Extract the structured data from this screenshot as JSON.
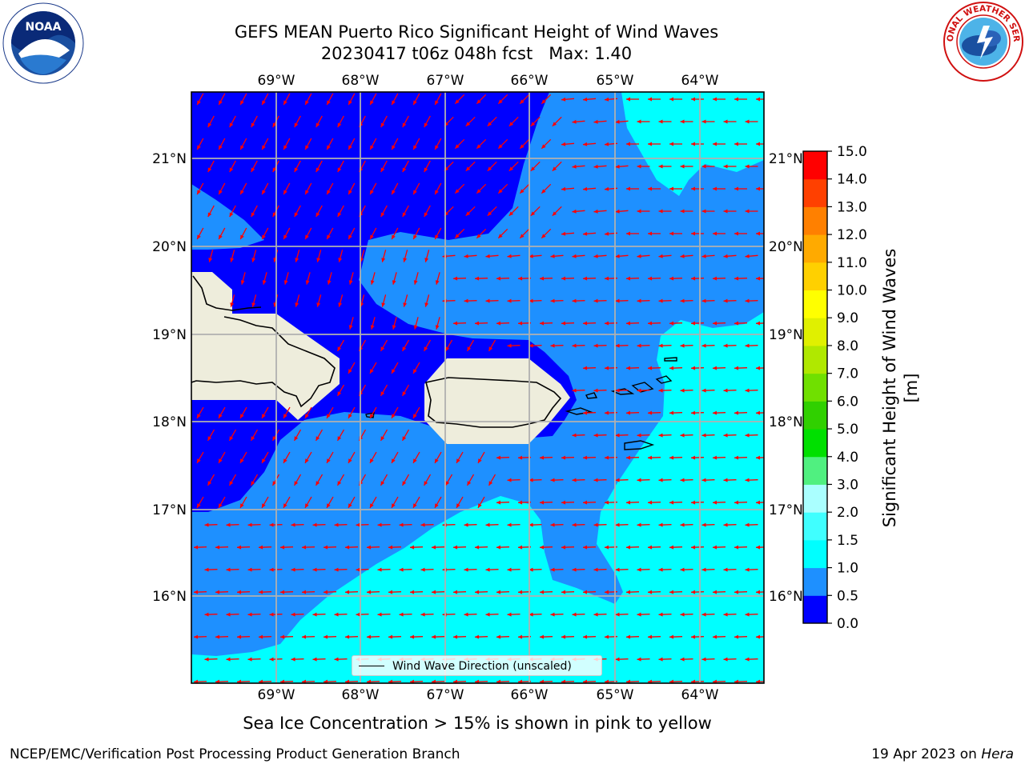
{
  "header": {
    "title_line1": "GEFS MEAN Puerto Rico Significant Height of Wind Waves",
    "title_line2": "20230417 t06z 048h fcst   Max: 1.40"
  },
  "logos": {
    "left": {
      "icon": "noaa-logo-icon",
      "text": "NOAA"
    },
    "right": {
      "icon": "nws-logo-icon",
      "text": "NATIONAL WEATHER SERVICE"
    }
  },
  "map": {
    "lon_ticks": [
      "69°W",
      "68°W",
      "67°W",
      "66°W",
      "65°W",
      "64°W"
    ],
    "lat_ticks": [
      "21°N",
      "20°N",
      "19°N",
      "18°N",
      "17°N",
      "16°N"
    ],
    "legend_label": "Wind Wave Direction (unscaled)",
    "arrow_color": "#ff0000",
    "land_color": "#eeeddc",
    "gridline_color": "#b0b0b0",
    "extent": {
      "lon_min": -70.0,
      "lon_max": -63.25,
      "lat_min": 15.0,
      "lat_max": 21.75
    }
  },
  "colorbar": {
    "label": "Significant Height of Wind Waves [m]",
    "levels": [
      "0.0",
      "0.5",
      "1.0",
      "1.5",
      "2.0",
      "3.0",
      "4.0",
      "5.0",
      "6.0",
      "7.0",
      "8.0",
      "9.0",
      "10.0",
      "11.0",
      "12.0",
      "13.0",
      "14.0",
      "15.0"
    ],
    "colors": [
      "#0000ff",
      "#1e90ff",
      "#00ffff",
      "#40ffff",
      "#aaffff",
      "#50f080",
      "#00e000",
      "#30d000",
      "#70e000",
      "#b0e800",
      "#e0f000",
      "#ffff00",
      "#ffd000",
      "#ffaa00",
      "#ff8000",
      "#ff4000",
      "#ff0000"
    ]
  },
  "footer": {
    "sea_ice_note": "Sea Ice Concentration > 15% is shown in pink to yellow",
    "left_text": "NCEP/EMC/Verification Post Processing Product Generation Branch",
    "date_text": "19 Apr 2023 on",
    "host_text": "Hera"
  }
}
